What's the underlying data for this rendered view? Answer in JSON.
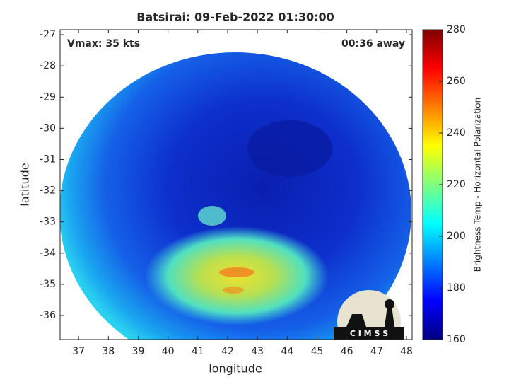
{
  "chart_data": {
    "type": "heatmap",
    "title": "Batsirai: 09-Feb-2022 01:30:00",
    "annotations": [
      "Vmax: 35 kts",
      "00:36 away"
    ],
    "xlabel": "longitude",
    "ylabel": "latitude",
    "xlim": [
      36.38,
      48.19
    ],
    "xticks": [
      37,
      38,
      39,
      40,
      41,
      42,
      43,
      44,
      45,
      46,
      47,
      48
    ],
    "ylim": [
      -36.77,
      -26.84
    ],
    "yticks": [
      -36,
      -35,
      -34,
      -33,
      -32,
      -31,
      -30,
      -29,
      -28,
      -27
    ],
    "colorbar": {
      "label": "Brightness Temp - Horizontal Polarization",
      "colormap": "jet",
      "lim": [
        160,
        280
      ],
      "ticks": [
        160,
        180,
        200,
        220,
        240,
        260,
        280
      ]
    },
    "logo_text": "C I M S S"
  }
}
